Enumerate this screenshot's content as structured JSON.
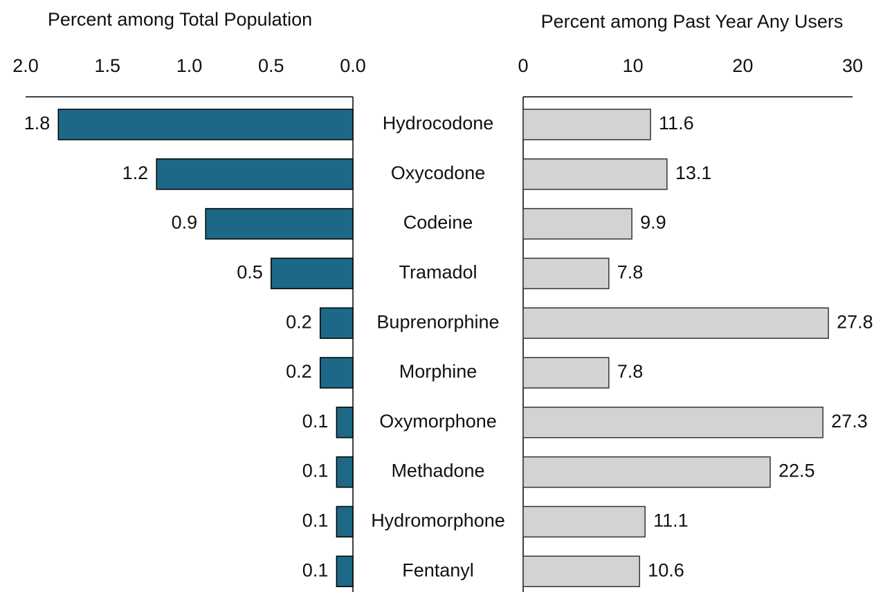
{
  "chart_data": [
    {
      "type": "hbar",
      "title": "Percent among Total Population",
      "orientation": "reversed",
      "categories": [
        "Hydrocodone",
        "Oxycodone",
        "Codeine",
        "Tramadol",
        "Buprenorphine",
        "Morphine",
        "Oxymorphone",
        "Methadone",
        "Hydromorphone",
        "Fentanyl"
      ],
      "values": [
        1.8,
        1.2,
        0.9,
        0.5,
        0.2,
        0.2,
        0.1,
        0.1,
        0.1,
        0.1
      ],
      "color": "#1c6886",
      "xlim": [
        2,
        0
      ],
      "xticks": [
        {
          "value": 2,
          "label": "2.0"
        },
        1.5,
        {
          "value": 1,
          "label": "1.0"
        },
        0.5,
        {
          "value": 0,
          "label": "0.0"
        }
      ]
    },
    {
      "type": "hbar",
      "title": "Percent among Past Year Any Users",
      "values": [
        11.6,
        13.1,
        9.9,
        7.8,
        27.8,
        7.8,
        27.3,
        22.5,
        11.1,
        10.6
      ],
      "color": "#d3d3d3",
      "xlim": [
        0,
        30
      ],
      "xticks": [
        0,
        10,
        20,
        30
      ]
    }
  ]
}
